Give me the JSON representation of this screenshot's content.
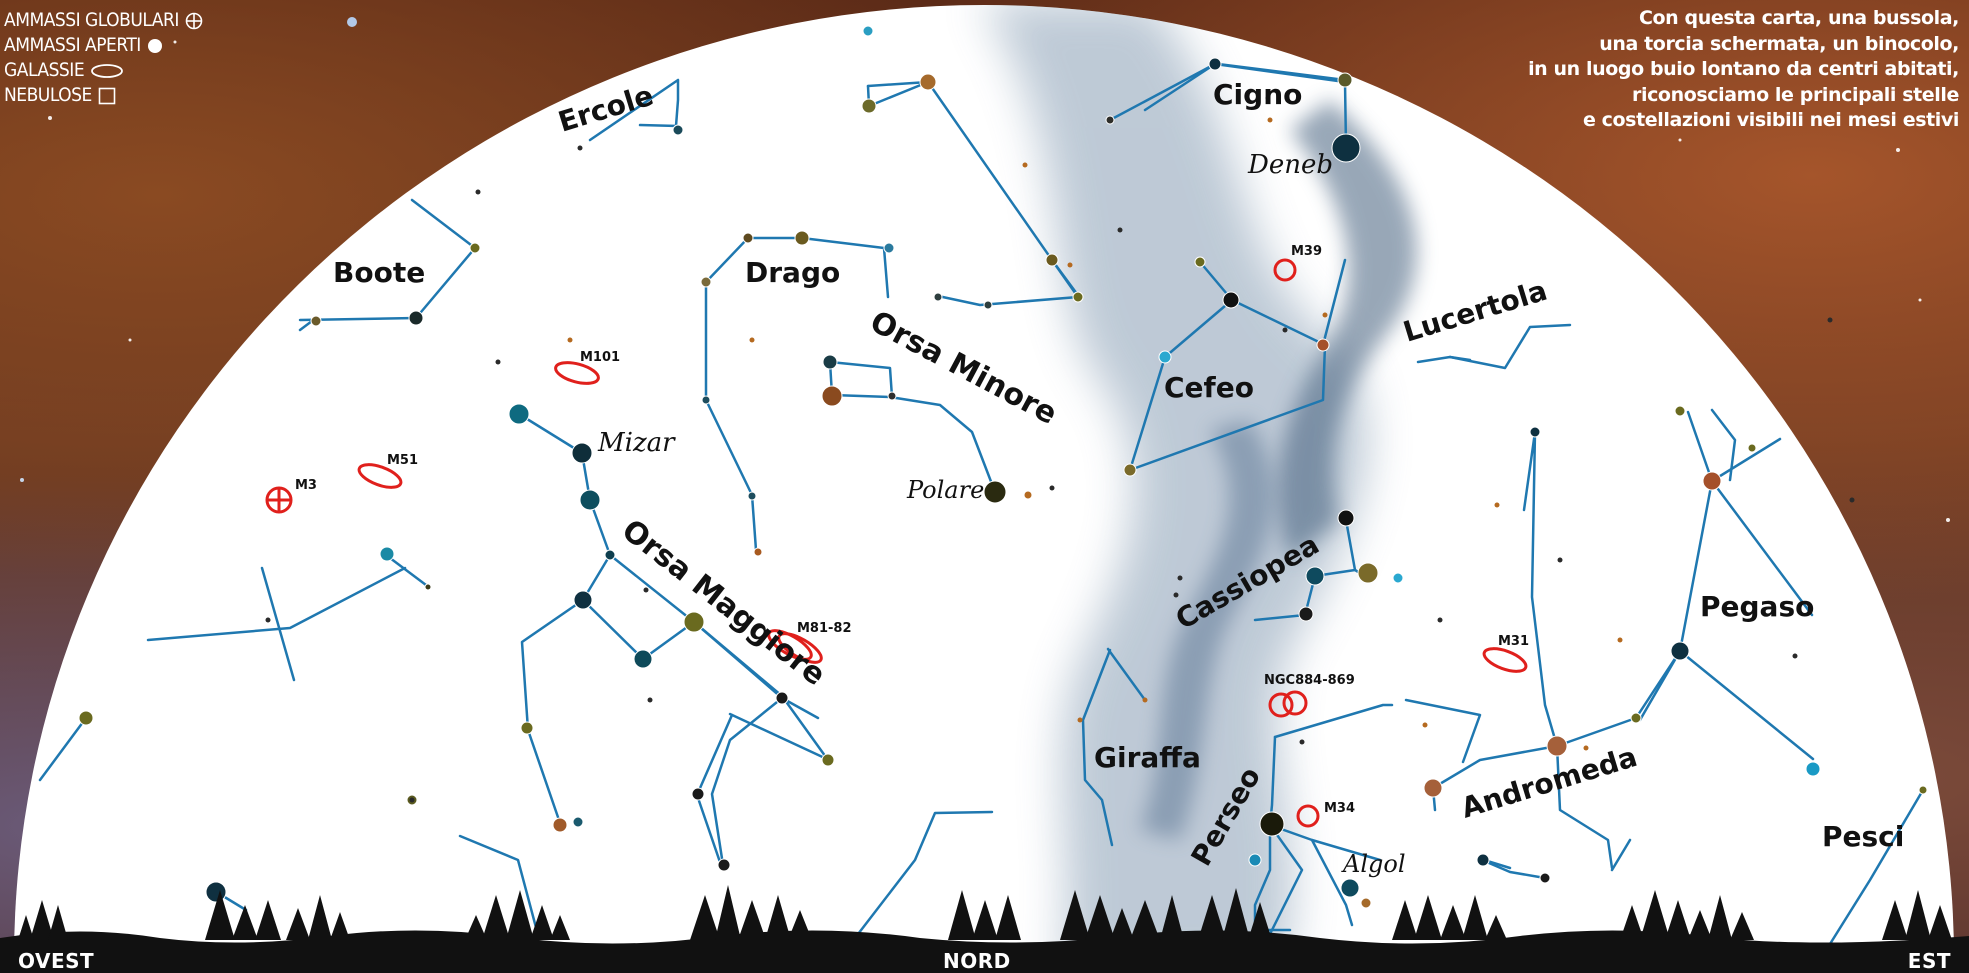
{
  "legend": {
    "globular": "AMMASSI GLOBULARI",
    "open": "AMMASSI APERTI",
    "galaxies": "GALASSIE",
    "nebulae": "NEBULOSE"
  },
  "intro": [
    "Con questa carta, una bussola,",
    "una torcia schermata, un binocolo,",
    "in un luogo buio lontano da centri abitati,",
    "riconosciamo le principali stelle",
    "e costellazioni visibili nei mesi estivi"
  ],
  "horizon": {
    "west": "OVEST",
    "north": "NORD",
    "east": "EST"
  },
  "constellations": {
    "ercole": "Ercole",
    "cigno": "Cigno",
    "boote": "Boote",
    "drago": "Drago",
    "orsa_minore": "Orsa Minore",
    "lucertola": "Lucertola",
    "cefeo": "Cefeo",
    "orsa_maggiore": "Orsa Maggiore",
    "cassiopea": "Cassiopea",
    "pegaso": "Pegaso",
    "giraffa": "Giraffa",
    "andromeda": "Andromeda",
    "perseo": "Perseo",
    "pesci": "Pesci"
  },
  "stars": {
    "deneb": "Deneb",
    "mizar": "Mizar",
    "polare": "Polare",
    "algol": "Algol"
  },
  "objects": {
    "m101": "M101",
    "m51": "M51",
    "m3": "M3",
    "m39": "M39",
    "m81_82": "M81-82",
    "ngc884_869": "NGC884-869",
    "m31": "M31",
    "m34": "M34"
  },
  "colors": {
    "line": "#1f78b0",
    "marker": "#e0201c",
    "dome": "#ffffff",
    "milky_way": "#5b7591"
  }
}
